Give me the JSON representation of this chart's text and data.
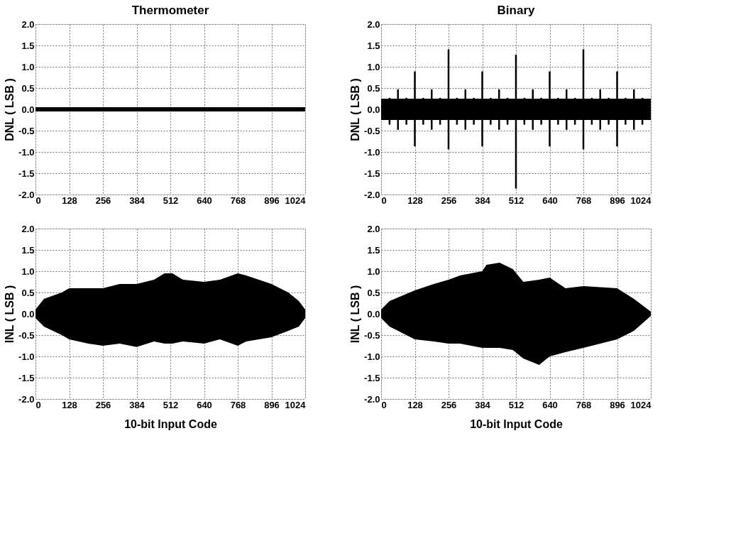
{
  "chart_data": [
    {
      "type": "line",
      "title": "Thermometer",
      "ylabel": "DNL ( LSB )",
      "xlim": [
        0,
        1024
      ],
      "xticks": [
        0,
        128,
        256,
        384,
        512,
        640,
        768,
        896,
        1024
      ],
      "ylim": [
        -2,
        2
      ],
      "yticks": [
        {
          "value": -2,
          "label": "-2.0"
        },
        -1.5,
        {
          "value": -1,
          "label": "-1.0"
        },
        -0.5,
        {
          "value": 0,
          "label": "0.0"
        },
        0.5,
        {
          "value": 1,
          "label": "1.0"
        },
        1.5,
        {
          "value": 2,
          "label": "2.0"
        }
      ],
      "grid": true,
      "line_style": "solid",
      "marker": "none",
      "series": [
        {
          "color": "#000000",
          "x": [
            0,
            128,
            256,
            384,
            512,
            640,
            768,
            896,
            1024
          ],
          "values": [
            0,
            0,
            0,
            0,
            0,
            0,
            0,
            0,
            0
          ],
          "lower": [
            -0.05,
            -0.05,
            -0.05,
            -0.05,
            -0.05,
            -0.05,
            -0.05,
            -0.05,
            -0.05
          ],
          "upper": [
            0.05,
            0.05,
            0.05,
            0.05,
            0.05,
            0.05,
            0.05,
            0.05,
            0.05
          ]
        }
      ]
    },
    {
      "type": "line",
      "title": "Binary",
      "ylabel": "DNL ( LSB )",
      "xlim": [
        0,
        1024
      ],
      "xticks": [
        0,
        128,
        256,
        384,
        512,
        640,
        768,
        896,
        1024
      ],
      "ylim": [
        -2,
        2
      ],
      "yticks": [
        {
          "value": -2,
          "label": "-2.0"
        },
        -1.5,
        {
          "value": -1,
          "label": "-1.0"
        },
        -0.5,
        {
          "value": 0,
          "label": "0.0"
        },
        0.5,
        {
          "value": 1,
          "label": "1.0"
        },
        1.5,
        {
          "value": 2,
          "label": "2.0"
        }
      ],
      "grid": true,
      "line_style": "solid",
      "marker": "none",
      "series": [
        {
          "color": "#000000",
          "x": [
            0,
            1024
          ],
          "values": [
            0,
            0
          ],
          "lower": [
            -0.25,
            -0.25
          ],
          "upper": [
            0.25,
            0.25
          ]
        },
        {
          "color": "#000000",
          "x": [
            32,
            32
          ],
          "values": [
            0.27,
            -0.36
          ]
        },
        {
          "color": "#000000",
          "x": [
            64,
            64
          ],
          "values": [
            0.47,
            -0.48
          ]
        },
        {
          "color": "#000000",
          "x": [
            96,
            96
          ],
          "values": [
            0.27,
            -0.36
          ]
        },
        {
          "color": "#000000",
          "x": [
            128,
            128
          ],
          "values": [
            0.89,
            -0.87
          ]
        },
        {
          "color": "#000000",
          "x": [
            160,
            160
          ],
          "values": [
            0.27,
            -0.36
          ]
        },
        {
          "color": "#000000",
          "x": [
            192,
            192
          ],
          "values": [
            0.47,
            -0.48
          ]
        },
        {
          "color": "#000000",
          "x": [
            224,
            224
          ],
          "values": [
            0.27,
            -0.36
          ]
        },
        {
          "color": "#000000",
          "x": [
            256,
            256
          ],
          "values": [
            1.41,
            -0.94
          ]
        },
        {
          "color": "#000000",
          "x": [
            288,
            288
          ],
          "values": [
            0.27,
            -0.36
          ]
        },
        {
          "color": "#000000",
          "x": [
            320,
            320
          ],
          "values": [
            0.47,
            -0.48
          ]
        },
        {
          "color": "#000000",
          "x": [
            352,
            352
          ],
          "values": [
            0.27,
            -0.36
          ]
        },
        {
          "color": "#000000",
          "x": [
            384,
            384
          ],
          "values": [
            0.89,
            -0.87
          ]
        },
        {
          "color": "#000000",
          "x": [
            416,
            416
          ],
          "values": [
            0.27,
            -0.36
          ]
        },
        {
          "color": "#000000",
          "x": [
            448,
            448
          ],
          "values": [
            0.47,
            -0.48
          ]
        },
        {
          "color": "#000000",
          "x": [
            480,
            480
          ],
          "values": [
            0.27,
            -0.36
          ]
        },
        {
          "color": "#000000",
          "x": [
            512,
            512
          ],
          "values": [
            1.28,
            -1.86
          ]
        },
        {
          "color": "#000000",
          "x": [
            544,
            544
          ],
          "values": [
            0.27,
            -0.36
          ]
        },
        {
          "color": "#000000",
          "x": [
            576,
            576
          ],
          "values": [
            0.47,
            -0.48
          ]
        },
        {
          "color": "#000000",
          "x": [
            608,
            608
          ],
          "values": [
            0.27,
            -0.36
          ]
        },
        {
          "color": "#000000",
          "x": [
            640,
            640
          ],
          "values": [
            0.89,
            -0.87
          ]
        },
        {
          "color": "#000000",
          "x": [
            672,
            672
          ],
          "values": [
            0.27,
            -0.36
          ]
        },
        {
          "color": "#000000",
          "x": [
            704,
            704
          ],
          "values": [
            0.47,
            -0.48
          ]
        },
        {
          "color": "#000000",
          "x": [
            736,
            736
          ],
          "values": [
            0.27,
            -0.36
          ]
        },
        {
          "color": "#000000",
          "x": [
            768,
            768
          ],
          "values": [
            1.41,
            -0.94
          ]
        },
        {
          "color": "#000000",
          "x": [
            800,
            800
          ],
          "values": [
            0.27,
            -0.36
          ]
        },
        {
          "color": "#000000",
          "x": [
            832,
            832
          ],
          "values": [
            0.47,
            -0.48
          ]
        },
        {
          "color": "#000000",
          "x": [
            864,
            864
          ],
          "values": [
            0.27,
            -0.36
          ]
        },
        {
          "color": "#000000",
          "x": [
            896,
            896
          ],
          "values": [
            0.89,
            -0.87
          ]
        },
        {
          "color": "#000000",
          "x": [
            928,
            928
          ],
          "values": [
            0.27,
            -0.36
          ]
        },
        {
          "color": "#000000",
          "x": [
            960,
            960
          ],
          "values": [
            0.47,
            -0.48
          ]
        },
        {
          "color": "#000000",
          "x": [
            992,
            992
          ],
          "values": [
            0.27,
            -0.36
          ]
        }
      ]
    },
    {
      "type": "line",
      "xlabel": "10-bit Input Code",
      "ylabel": "INL ( LSB )",
      "xlim": [
        0,
        1024
      ],
      "xticks": [
        0,
        128,
        256,
        384,
        512,
        640,
        768,
        896,
        1024
      ],
      "ylim": [
        -2,
        2
      ],
      "yticks": [
        {
          "value": -2,
          "label": "-2.0"
        },
        -1.5,
        {
          "value": -1,
          "label": "-1.0"
        },
        -0.5,
        {
          "value": 0,
          "label": "0.0"
        },
        0.5,
        {
          "value": 1,
          "label": "1.0"
        },
        1.5,
        {
          "value": 2,
          "label": "2.0"
        }
      ],
      "grid": true,
      "line_style": "solid",
      "marker": "none",
      "series": [
        {
          "color": "#000000",
          "x": [
            0,
            32,
            100,
            128,
            200,
            256,
            320,
            384,
            450,
            490,
            520,
            560,
            640,
            700,
            768,
            800,
            896,
            960,
            1000,
            1024
          ],
          "values": [
            0,
            0,
            0,
            0,
            0,
            0,
            0,
            0,
            0,
            0,
            0,
            0,
            0,
            0,
            0,
            0,
            0,
            0,
            0,
            0
          ],
          "upper": [
            0.1,
            0.35,
            0.5,
            0.6,
            0.6,
            0.6,
            0.7,
            0.7,
            0.8,
            0.95,
            0.95,
            0.8,
            0.75,
            0.8,
            0.95,
            0.9,
            0.7,
            0.5,
            0.3,
            0.1
          ],
          "lower": [
            -0.1,
            -0.3,
            -0.5,
            -0.6,
            -0.7,
            -0.75,
            -0.7,
            -0.78,
            -0.65,
            -0.7,
            -0.7,
            -0.65,
            -0.7,
            -0.6,
            -0.75,
            -0.65,
            -0.55,
            -0.4,
            -0.3,
            -0.1
          ]
        }
      ]
    },
    {
      "type": "line",
      "xlabel": "10-bit Input Code",
      "ylabel": "INL ( LSB )",
      "xlim": [
        0,
        1024
      ],
      "xticks": [
        0,
        128,
        256,
        384,
        512,
        640,
        768,
        896,
        1024
      ],
      "ylim": [
        -2,
        2
      ],
      "yticks": [
        {
          "value": -2,
          "label": "-2.0"
        },
        -1.5,
        {
          "value": -1,
          "label": "-1.0"
        },
        -0.5,
        {
          "value": 0,
          "label": "0.0"
        },
        0.5,
        {
          "value": 1,
          "label": "1.0"
        },
        1.5,
        {
          "value": 2,
          "label": "2.0"
        }
      ],
      "grid": true,
      "line_style": "solid",
      "marker": "none",
      "series": [
        {
          "color": "#000000",
          "x": [
            0,
            32,
            128,
            200,
            256,
            300,
            384,
            400,
            450,
            500,
            540,
            600,
            640,
            700,
            768,
            896,
            960,
            1024
          ],
          "values": [
            0,
            0,
            0,
            0,
            0,
            0,
            0,
            0,
            0,
            0,
            0,
            0,
            0,
            0,
            0,
            0,
            0,
            0
          ],
          "upper": [
            0.1,
            0.3,
            0.55,
            0.7,
            0.8,
            0.9,
            1.0,
            1.15,
            1.2,
            1.05,
            0.75,
            0.8,
            0.85,
            0.6,
            0.65,
            0.6,
            0.35,
            0.05
          ],
          "lower": [
            -0.1,
            -0.3,
            -0.6,
            -0.65,
            -0.7,
            -0.7,
            -0.8,
            -0.8,
            -0.8,
            -0.85,
            -1.05,
            -1.2,
            -1.0,
            -0.9,
            -0.8,
            -0.6,
            -0.4,
            -0.05
          ]
        }
      ]
    }
  ]
}
